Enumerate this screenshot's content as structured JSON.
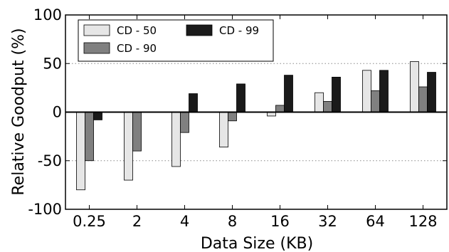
{
  "chart_data": {
    "type": "bar",
    "title": "",
    "xlabel": "Data Size (KB)",
    "ylabel": "Relative Goodput (%)",
    "ylim": [
      -100,
      100
    ],
    "yticks": [
      -100,
      -50,
      0,
      50,
      100
    ],
    "categories": [
      "0.25",
      "2",
      "4",
      "8",
      "16",
      "32",
      "64",
      "128"
    ],
    "series": [
      {
        "name": "CD - 50",
        "color": "#e6e6e6",
        "values": [
          -80,
          -70,
          -56,
          -36,
          -4,
          20,
          43,
          52
        ]
      },
      {
        "name": "CD - 90",
        "color": "#808080",
        "values": [
          -50,
          -40,
          -21,
          -9,
          7,
          11,
          22,
          26
        ]
      },
      {
        "name": "CD - 99",
        "color": "#1a1a1a",
        "values": [
          -8,
          0,
          19,
          29,
          38,
          36,
          43,
          41
        ]
      }
    ],
    "grid": "dotted horizontal lines at ±50",
    "legend_position": "top-left"
  }
}
